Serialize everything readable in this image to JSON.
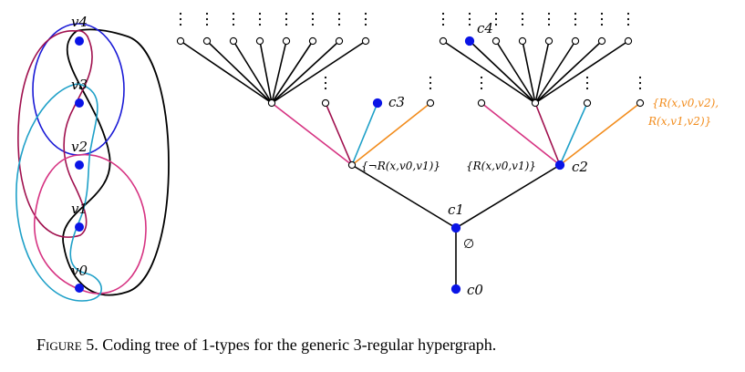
{
  "figure": {
    "vertices": [
      "v4",
      "v3",
      "v2",
      "v1",
      "v0"
    ],
    "nodes": {
      "c0": "c0",
      "c1": "c1",
      "c2": "c2",
      "c3": "c3",
      "c4": "c4"
    },
    "edge_labels": {
      "empty": "∅",
      "neg": "{¬R(x,v0,v1)}",
      "pos": "{R(x,v0,v1)}",
      "orange_line1": "{R(x,v0,v2),",
      "orange_line2": "R(x,v1,v2)}"
    },
    "colors": {
      "filled": "#0a14e6",
      "blue": "#1a1ad6",
      "crimson": "#a0104e",
      "pink": "#d63382",
      "cyan": "#1ea0c8",
      "orange": "#f28c1c",
      "black": "#000000"
    }
  },
  "caption": {
    "label": "Figure 5.",
    "text": "Coding tree of 1-types for the generic 3-regular hypergraph."
  }
}
